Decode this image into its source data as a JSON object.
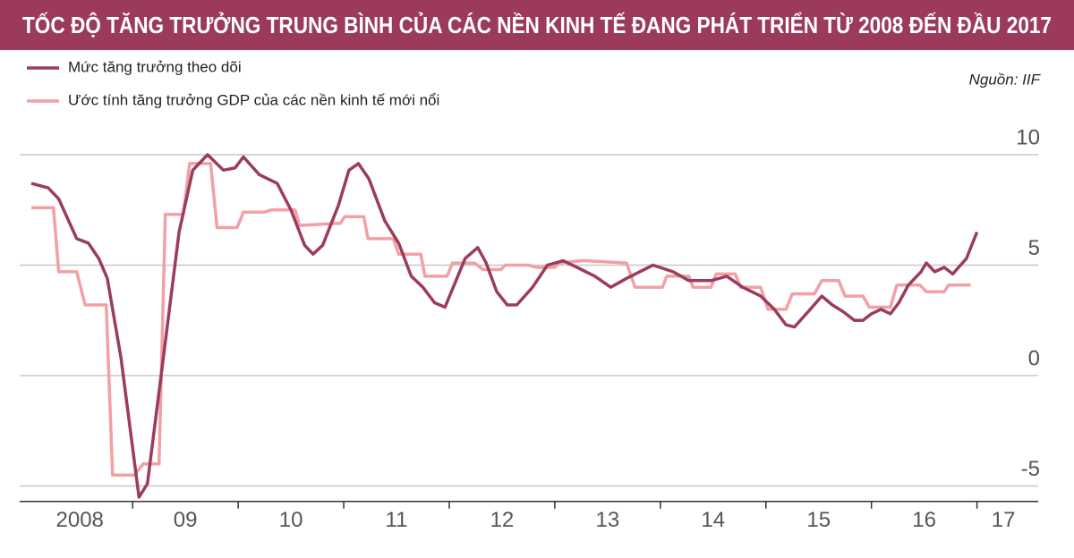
{
  "chart_data": {
    "type": "line",
    "title": "TỐC ĐỘ TĂNG TRƯỞNG TRUNG BÌNH CỦA CÁC NỀN KINH TẾ ĐANG PHÁT TRIỂN TỪ 2008 ĐẾN ĐẦU 2017",
    "source": "Nguồn: IIF",
    "series": [
      {
        "name": "Mức tăng trưởng theo dõi",
        "color": "#9b3c5e",
        "x": [
          2008.04,
          2008.2,
          2008.3,
          2008.47,
          2008.58,
          2008.68,
          2008.76,
          2008.89,
          2009.02,
          2009.06,
          2009.14,
          2009.27,
          2009.44,
          2009.57,
          2009.71,
          2009.86,
          2009.97,
          2010.05,
          2010.2,
          2010.37,
          2010.5,
          2010.63,
          2010.71,
          2010.8,
          2010.95,
          2011.05,
          2011.14,
          2011.24,
          2011.39,
          2011.52,
          2011.64,
          2011.75,
          2011.86,
          2011.96,
          2012.15,
          2012.27,
          2012.35,
          2012.45,
          2012.55,
          2012.64,
          2012.79,
          2012.93,
          2013.08,
          2013.21,
          2013.38,
          2013.53,
          2013.68,
          2013.93,
          2014.12,
          2014.27,
          2014.48,
          2014.63,
          2014.78,
          2014.95,
          2015.08,
          2015.19,
          2015.27,
          2015.42,
          2015.53,
          2015.63,
          2015.73,
          2015.84,
          2015.92,
          2016.0,
          2016.09,
          2016.18,
          2016.26,
          2016.35,
          2016.47,
          2016.52,
          2016.6,
          2016.69,
          2016.77,
          2016.9,
          2017.0
        ],
        "values": [
          8.7,
          8.5,
          8.0,
          6.2,
          6.0,
          5.3,
          4.4,
          0.8,
          -4.0,
          -5.5,
          -4.9,
          0,
          6.5,
          9.3,
          10.0,
          9.3,
          9.4,
          9.9,
          9.1,
          8.7,
          7.5,
          5.9,
          5.5,
          5.9,
          7.7,
          9.3,
          9.6,
          8.9,
          7.0,
          6.0,
          4.5,
          4.0,
          3.3,
          3.1,
          5.3,
          5.8,
          5.1,
          3.8,
          3.2,
          3.2,
          4.0,
          5.0,
          5.2,
          4.9,
          4.5,
          4.0,
          4.4,
          5.0,
          4.7,
          4.3,
          4.3,
          4.5,
          4.0,
          3.6,
          3.0,
          2.3,
          2.2,
          3.0,
          3.6,
          3.2,
          2.9,
          2.5,
          2.5,
          2.8,
          3.0,
          2.8,
          3.3,
          4.1,
          4.7,
          5.1,
          4.7,
          4.9,
          4.6,
          5.3,
          6.5
        ]
      },
      {
        "name": "Ước tính tăng trưởng GDP của các nền kinh tế mới nổi",
        "color": "#f2a0a3",
        "x": [
          2008.04,
          2008.25,
          2008.3,
          2008.47,
          2008.55,
          2008.75,
          2008.81,
          2009.02,
          2009.1,
          2009.25,
          2009.31,
          2009.48,
          2009.54,
          2009.74,
          2009.8,
          2009.99,
          2010.05,
          2010.25,
          2010.31,
          2010.54,
          2010.58,
          2010.97,
          2011.01,
          2011.19,
          2011.23,
          2011.47,
          2011.52,
          2011.73,
          2011.77,
          2011.98,
          2012.03,
          2012.24,
          2012.32,
          2012.49,
          2012.53,
          2012.75,
          2012.83,
          2013.0,
          2013.04,
          2013.25,
          2013.3,
          2013.68,
          2013.76,
          2014.02,
          2014.06,
          2014.27,
          2014.31,
          2014.48,
          2014.53,
          2014.71,
          2014.76,
          2014.95,
          2015.02,
          2015.19,
          2015.25,
          2015.46,
          2015.53,
          2015.69,
          2015.75,
          2015.92,
          2015.98,
          2016.18,
          2016.24,
          2016.46,
          2016.52,
          2016.69,
          2016.73,
          2016.94
        ],
        "values": [
          7.6,
          7.6,
          4.7,
          4.7,
          3.2,
          3.2,
          -4.5,
          -4.5,
          -4.0,
          -4.0,
          7.3,
          7.3,
          9.6,
          9.6,
          6.7,
          6.7,
          7.4,
          7.4,
          7.5,
          7.5,
          6.8,
          6.9,
          7.2,
          7.2,
          6.2,
          6.2,
          5.5,
          5.5,
          4.5,
          4.5,
          5.1,
          5.1,
          4.8,
          4.8,
          5.0,
          5.0,
          4.9,
          4.9,
          5.1,
          5.2,
          5.2,
          5.1,
          4.0,
          4.0,
          4.5,
          4.5,
          4.0,
          4.0,
          4.6,
          4.6,
          4.0,
          4.0,
          3.0,
          3.0,
          3.7,
          3.7,
          4.3,
          4.3,
          3.6,
          3.6,
          3.1,
          3.1,
          4.1,
          4.1,
          3.8,
          3.8,
          4.1,
          4.1
        ]
      }
    ],
    "xlim": [
      2007.93,
      2017.58
    ],
    "xticks": [
      {
        "value": 2008.5,
        "label": "2008"
      },
      {
        "value": 2009.5,
        "label": "09"
      },
      {
        "value": 2010.5,
        "label": "10"
      },
      {
        "value": 2011.5,
        "label": "11"
      },
      {
        "value": 2012.5,
        "label": "12"
      },
      {
        "value": 2013.5,
        "label": "13"
      },
      {
        "value": 2014.5,
        "label": "14"
      },
      {
        "value": 2015.5,
        "label": "15"
      },
      {
        "value": 2016.5,
        "label": "16"
      },
      {
        "value": 2017.25,
        "label": "17"
      }
    ],
    "xticks_minor": [
      2009,
      2010,
      2011,
      2012,
      2013,
      2014,
      2015,
      2016,
      2017
    ],
    "ylim": [
      -5.7,
      10.9
    ],
    "yticks": [
      10,
      5,
      0,
      -5
    ],
    "grid": true
  }
}
